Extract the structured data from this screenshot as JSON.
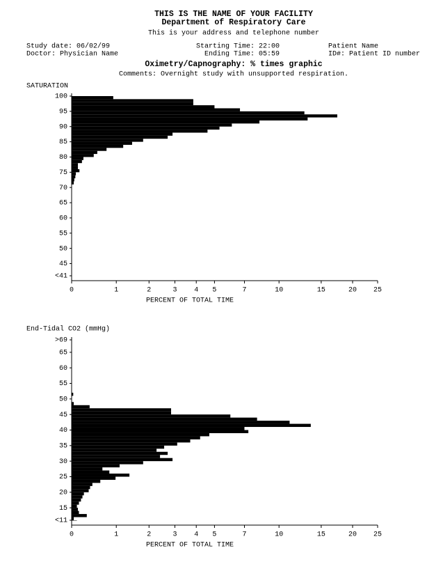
{
  "header": {
    "facility": "THIS IS THE NAME OF YOUR FACILITY",
    "department": "Department of Respiratory Care",
    "address": "This is your address and telephone number",
    "study_date": "Study date: 06/02/99",
    "doctor": "Doctor: Physician Name",
    "starting_time": "Starting Time: 22:00",
    "ending_time": "Ending Time: 05:59",
    "patient_name": "Patient Name",
    "patient_id": "ID#: Patient ID number",
    "report_title": "Oximetry/Capnography: % times graphic",
    "comments": "Comments: Overnight study with unsupported respiration."
  },
  "chart_data": [
    {
      "type": "hbar",
      "y_label": "SATURATION",
      "x_label": "PERCENT OF TOTAL TIME",
      "color": "#000000",
      "y": [
        41,
        42,
        43,
        44,
        45,
        46,
        47,
        48,
        49,
        50,
        51,
        52,
        53,
        54,
        55,
        56,
        57,
        58,
        59,
        60,
        61,
        62,
        63,
        64,
        65,
        66,
        67,
        68,
        69,
        70,
        71,
        72,
        73,
        74,
        75,
        76,
        77,
        78,
        79,
        80,
        81,
        82,
        83,
        84,
        85,
        86,
        87,
        88,
        89,
        90,
        91,
        92,
        93,
        94,
        95,
        96,
        97,
        98,
        99,
        100
      ],
      "values": [
        0,
        0,
        0,
        0,
        0,
        0,
        0,
        0,
        0,
        0,
        0,
        0,
        0,
        0,
        0,
        0,
        0,
        0,
        0,
        0,
        0,
        0,
        0,
        0,
        0,
        0,
        0,
        0,
        0,
        0,
        0,
        0.04,
        0.05,
        0.07,
        0.08,
        0.15,
        0.12,
        0.12,
        0.2,
        0.23,
        0.45,
        0.53,
        0.75,
        1.19,
        1.45,
        1.8,
        2.7,
        2.9,
        4.6,
        5.3,
        6.1,
        8.2,
        13.2,
        17.4,
        12.8,
        6.67,
        5.0,
        3.85,
        3.85,
        0.92
      ],
      "ylim": [
        41,
        100
      ],
      "yticks": [
        {
          "value": 41,
          "label": "<41"
        },
        45,
        50,
        55,
        60,
        65,
        70,
        75,
        80,
        85,
        90,
        95,
        100
      ],
      "xlim": [
        0,
        25
      ],
      "xticks": [
        0,
        1,
        2,
        3,
        4,
        5,
        7,
        10,
        15,
        20,
        25
      ]
    },
    {
      "type": "hbar",
      "y_label": "End-Tidal CO2 (mmHg)",
      "x_label": "PERCENT OF TOTAL TIME",
      "color": "#000000",
      "y": [
        11,
        12,
        13,
        14,
        15,
        16,
        17,
        18,
        19,
        20,
        21,
        22,
        23,
        24,
        25,
        26,
        27,
        28,
        29,
        30,
        31,
        32,
        33,
        34,
        35,
        36,
        37,
        38,
        39,
        40,
        41,
        42,
        43,
        44,
        45,
        46,
        47,
        48,
        49,
        50,
        51,
        52,
        53,
        54,
        55,
        56,
        57,
        58,
        59,
        60,
        61,
        62,
        63,
        64,
        65,
        66,
        67,
        68,
        69
      ],
      "values": [
        0.1,
        0.04,
        0.3,
        0.14,
        0.12,
        0.1,
        0.14,
        0.18,
        0.21,
        0.24,
        0.34,
        0.37,
        0.42,
        0.6,
        0.98,
        1.37,
        0.82,
        0.65,
        1.09,
        1.8,
        2.9,
        2.4,
        2.7,
        2.27,
        2.56,
        3.1,
        3.7,
        4.2,
        4.7,
        7.3,
        7.0,
        13.6,
        11.1,
        8.0,
        6.0,
        2.84,
        2.84,
        0.36,
        0.04,
        0,
        0,
        0.03,
        0,
        0,
        0,
        0,
        0,
        0,
        0,
        0,
        0,
        0,
        0,
        0,
        0,
        0,
        0,
        0,
        0
      ],
      "ylim": [
        11,
        69
      ],
      "yticks": [
        {
          "value": 11,
          "label": "<11"
        },
        15,
        20,
        25,
        30,
        35,
        40,
        45,
        50,
        55,
        60,
        65,
        {
          "value": 69,
          "label": ">69"
        }
      ],
      "xlim": [
        0,
        25
      ],
      "xticks": [
        0,
        1,
        2,
        3,
        4,
        5,
        7,
        10,
        15,
        20,
        25
      ]
    }
  ]
}
